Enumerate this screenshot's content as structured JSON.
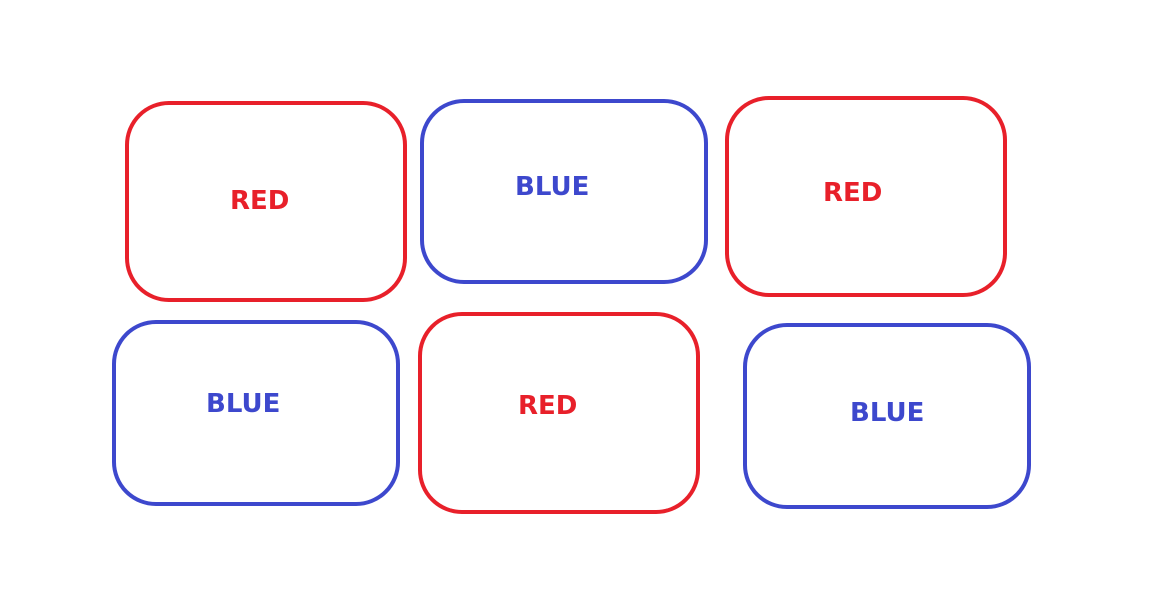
{
  "colors": {
    "red": "#e8202a",
    "blue": "#3d48cd",
    "background": "#ffffff"
  },
  "boxes": [
    {
      "label": "RED",
      "color": "red"
    },
    {
      "label": "BLUE",
      "color": "blue"
    },
    {
      "label": "RED",
      "color": "red"
    },
    {
      "label": "BLUE",
      "color": "blue"
    },
    {
      "label": "RED",
      "color": "red"
    },
    {
      "label": "BLUE",
      "color": "blue"
    }
  ]
}
